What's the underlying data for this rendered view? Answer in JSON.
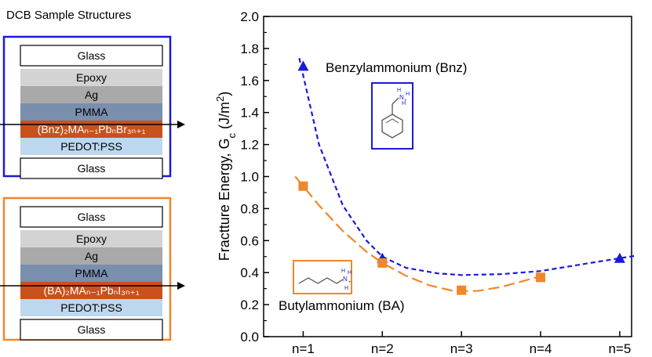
{
  "panel": {
    "title": "DCB Sample Structures",
    "stacks": [
      {
        "id": "bnz",
        "frame_color": "#1a1adb",
        "layers": [
          {
            "label": "Glass",
            "fill": "#ffffff"
          },
          {
            "label": "Epoxy",
            "fill": "#d3d3d3"
          },
          {
            "label": "Ag",
            "fill": "#a9a9a9"
          },
          {
            "label": "PMMA",
            "fill": "#7a8eae"
          },
          {
            "label": "(Bnz)₂MAₙ₋₁PbₙBr₃ₙ₊₁",
            "fill": "#c8511c",
            "text_color": "#ffffff"
          },
          {
            "label": "PEDOT:PSS",
            "fill": "#bdd7ee"
          },
          {
            "label": "Glass",
            "fill": "#ffffff"
          }
        ]
      },
      {
        "id": "ba",
        "frame_color": "#f0872a",
        "layers": [
          {
            "label": "Glass",
            "fill": "#ffffff"
          },
          {
            "label": "Epoxy",
            "fill": "#d3d3d3"
          },
          {
            "label": "Ag",
            "fill": "#a9a9a9"
          },
          {
            "label": "PMMA",
            "fill": "#7a8eae"
          },
          {
            "label": "(BA)₂MAₙ₋₁PbₙI₃ₙ₊₁",
            "fill": "#c8511c",
            "text_color": "#ffffff"
          },
          {
            "label": "PEDOT:PSS",
            "fill": "#bdd7ee"
          },
          {
            "label": "Glass",
            "fill": "#ffffff"
          }
        ]
      }
    ]
  },
  "chart_data": {
    "type": "scatter",
    "title": "",
    "xlabel": "",
    "ylabel": "Fractture Energy, G",
    "ylabel_sub": "c",
    "ylabel_unit_prefix": " (J/m",
    "ylabel_unit_sup": "2",
    "ylabel_unit_suffix": ")",
    "categories": [
      "n=1",
      "n=2",
      "n=3",
      "n=4",
      "n=5"
    ],
    "ylim": [
      0,
      2.0
    ],
    "yticks": [
      "0.0",
      "0.2",
      "0.4",
      "0.6",
      "0.8",
      "1.0",
      "1.2",
      "1.4",
      "1.6",
      "1.8",
      "2.0"
    ],
    "grid": false,
    "series": [
      {
        "name": "Benzylammonium (Bnz)",
        "marker": "triangle",
        "color": "#1a1adb",
        "x": [
          1,
          2,
          5
        ],
        "values": [
          1.69,
          0.49,
          0.49
        ],
        "fit": [
          [
            0.95,
            1.74
          ],
          [
            1.2,
            1.2
          ],
          [
            1.5,
            0.82
          ],
          [
            1.8,
            0.6
          ],
          [
            2.0,
            0.5
          ],
          [
            2.3,
            0.43
          ],
          [
            2.7,
            0.395
          ],
          [
            3.0,
            0.385
          ],
          [
            3.5,
            0.39
          ],
          [
            4.0,
            0.41
          ],
          [
            4.5,
            0.45
          ],
          [
            5.0,
            0.49
          ],
          [
            5.2,
            0.505
          ]
        ]
      },
      {
        "name": "Butylammonium (BA)",
        "marker": "square",
        "color": "#f0872a",
        "x": [
          1,
          2,
          3,
          4
        ],
        "values": [
          0.94,
          0.46,
          0.29,
          0.37
        ],
        "fit": [
          [
            0.9,
            1.0
          ],
          [
            1.2,
            0.82
          ],
          [
            1.5,
            0.66
          ],
          [
            1.8,
            0.53
          ],
          [
            2.0,
            0.46
          ],
          [
            2.3,
            0.38
          ],
          [
            2.6,
            0.32
          ],
          [
            2.9,
            0.285
          ],
          [
            3.2,
            0.285
          ],
          [
            3.5,
            0.31
          ],
          [
            3.8,
            0.35
          ],
          [
            4.1,
            0.39
          ]
        ]
      }
    ],
    "annotations": [
      {
        "text": "Benzylammonium (Bnz)",
        "series": 0,
        "icon": "benzylammonium-structure-icon"
      },
      {
        "text": "Butylammonium (BA)",
        "series": 1,
        "icon": "butylammonium-structure-icon"
      }
    ]
  }
}
